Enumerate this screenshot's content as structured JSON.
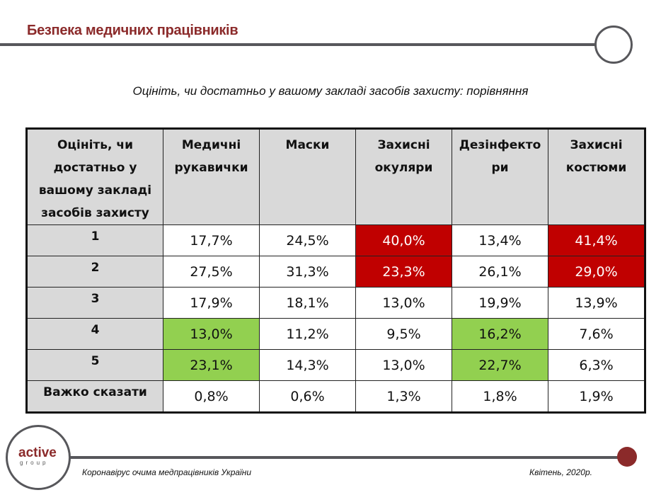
{
  "header": {
    "title": "Безпека медичних працівників"
  },
  "subtitle": "Оцініть, чи достатньо у вашому закладі засобів захисту: порівняння",
  "table": {
    "corner_header": "Оцініть, чи достатньо у вашому закладі засобів захисту",
    "columns": [
      "Медичні рукавички",
      "Маски",
      "Захисні окуляри",
      "Дезінфектори",
      "Захисні костюми"
    ],
    "column_display": [
      "Медичні рукавички",
      "Маски",
      "Захисні окуляри",
      "Дезінфекто ри",
      "Захисні костюми"
    ],
    "rows": [
      {
        "label": "1",
        "values": [
          "17,7%",
          "24,5%",
          "40,0%",
          "13,4%",
          "41,4%"
        ],
        "highlight": [
          "",
          "",
          "red",
          "",
          "red"
        ]
      },
      {
        "label": "2",
        "values": [
          "27,5%",
          "31,3%",
          "23,3%",
          "26,1%",
          "29,0%"
        ],
        "highlight": [
          "",
          "",
          "red",
          "",
          "red"
        ]
      },
      {
        "label": "3",
        "values": [
          "17,9%",
          "18,1%",
          "13,0%",
          "19,9%",
          "13,9%"
        ],
        "highlight": [
          "",
          "",
          "",
          "",
          ""
        ]
      },
      {
        "label": "4",
        "values": [
          "13,0%",
          "11,2%",
          "9,5%",
          "16,2%",
          "7,6%"
        ],
        "highlight": [
          "green",
          "",
          "",
          "green",
          ""
        ]
      },
      {
        "label": "5",
        "values": [
          "23,1%",
          "14,3%",
          "13,0%",
          "22,7%",
          "6,3%"
        ],
        "highlight": [
          "green",
          "",
          "",
          "green",
          ""
        ]
      },
      {
        "label": "Важко сказати",
        "values": [
          "0,8%",
          "0,6%",
          "1,3%",
          "1,8%",
          "1,9%"
        ],
        "highlight": [
          "",
          "",
          "",
          "",
          ""
        ]
      }
    ],
    "colors": {
      "red": "#c00000",
      "green": "#92d050",
      "header_bg": "#d9d9d9"
    }
  },
  "logo": {
    "name": "active",
    "sub": "group"
  },
  "footer": {
    "left": "Коронавірус очима медпрацівників України",
    "right": "Квітень, 2020р."
  }
}
